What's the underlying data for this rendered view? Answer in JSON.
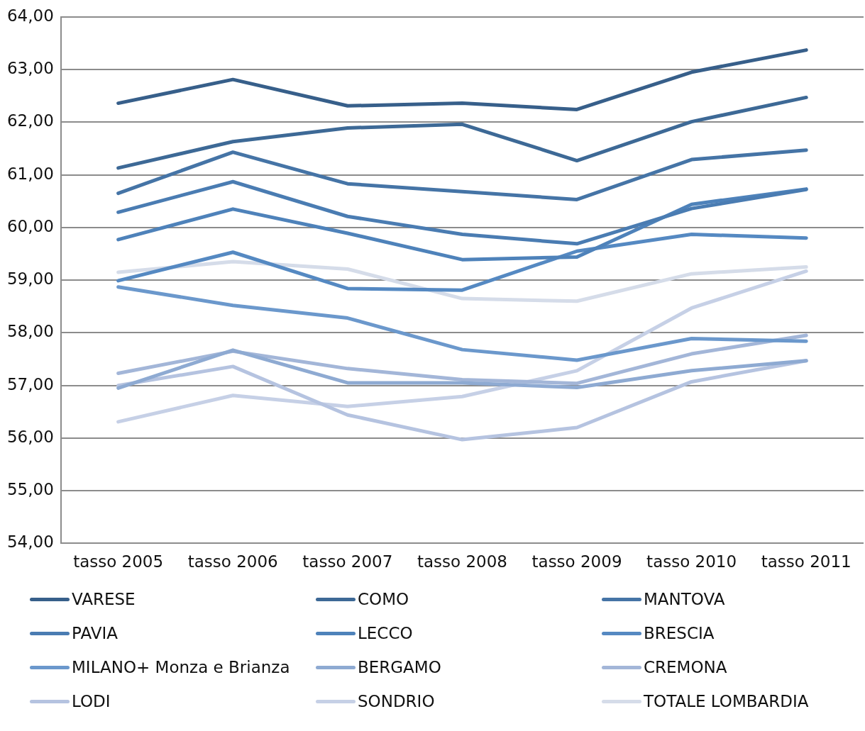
{
  "chart_data": {
    "type": "line",
    "categories": [
      "tasso 2005",
      "tasso 2006",
      "tasso 2007",
      "tasso 2008",
      "tasso 2009",
      "tasso 2010",
      "tasso 2011"
    ],
    "ylim": [
      54,
      64
    ],
    "yticks": [
      {
        "value": 54,
        "label": "54,00"
      },
      {
        "value": 55,
        "label": "55,00"
      },
      {
        "value": 56,
        "label": "56,00"
      },
      {
        "value": 57,
        "label": "57,00"
      },
      {
        "value": 58,
        "label": "58,00"
      },
      {
        "value": 59,
        "label": "59,00"
      },
      {
        "value": 60,
        "label": "60,00"
      },
      {
        "value": 61,
        "label": "61,00"
      },
      {
        "value": 62,
        "label": "62,00"
      },
      {
        "value": 63,
        "label": "63,00"
      },
      {
        "value": 64,
        "label": "64,00"
      }
    ],
    "grid": "y",
    "legend": "bottom",
    "marker": "none",
    "line_style": "solid",
    "series": [
      {
        "name": "VARESE",
        "color": "#375f8a",
        "values": [
          62.36,
          62.81,
          62.31,
          62.36,
          62.24,
          62.95,
          63.37
        ]
      },
      {
        "name": "COMO",
        "color": "#3d6996",
        "values": [
          61.13,
          61.63,
          61.89,
          61.96,
          61.27,
          62.01,
          62.47
        ]
      },
      {
        "name": "MANTOVA",
        "color": "#4574a6",
        "values": [
          60.65,
          61.43,
          60.83,
          60.68,
          60.53,
          61.29,
          61.47
        ]
      },
      {
        "name": "PAVIA",
        "color": "#4a7cb2",
        "values": [
          60.29,
          60.87,
          60.21,
          59.87,
          59.69,
          60.36,
          60.72
        ]
      },
      {
        "name": "LECCO",
        "color": "#4e82ba",
        "values": [
          59.77,
          60.35,
          59.89,
          59.39,
          59.44,
          60.44,
          60.73
        ]
      },
      {
        "name": "BRESCIA",
        "color": "#5589c2",
        "values": [
          58.99,
          59.53,
          58.84,
          58.81,
          59.55,
          59.87,
          59.8
        ]
      },
      {
        "name": "MILANO+ Monza e Brianza",
        "color": "#6b98cc",
        "values": [
          58.87,
          58.52,
          58.28,
          57.68,
          57.48,
          57.89,
          57.84
        ]
      },
      {
        "name": "BERGAMO",
        "color": "#8eaad2",
        "values": [
          56.95,
          57.67,
          57.05,
          57.05,
          56.96,
          57.28,
          57.47
        ]
      },
      {
        "name": "CREMONA",
        "color": "#a3b6d8",
        "values": [
          57.23,
          57.65,
          57.32,
          57.11,
          57.04,
          57.6,
          57.95
        ]
      },
      {
        "name": "LODI",
        "color": "#b5c3e0",
        "values": [
          57.0,
          57.36,
          56.44,
          55.97,
          56.2,
          57.07,
          57.47
        ]
      },
      {
        "name": "SONDRIO",
        "color": "#c6d0e6",
        "values": [
          56.31,
          56.81,
          56.6,
          56.79,
          57.28,
          58.47,
          59.17
        ]
      },
      {
        "name": "TOTALE LOMBARDIA",
        "color": "#d5dce9",
        "values": [
          59.15,
          59.35,
          59.21,
          58.65,
          58.6,
          59.12,
          59.25
        ]
      }
    ]
  }
}
